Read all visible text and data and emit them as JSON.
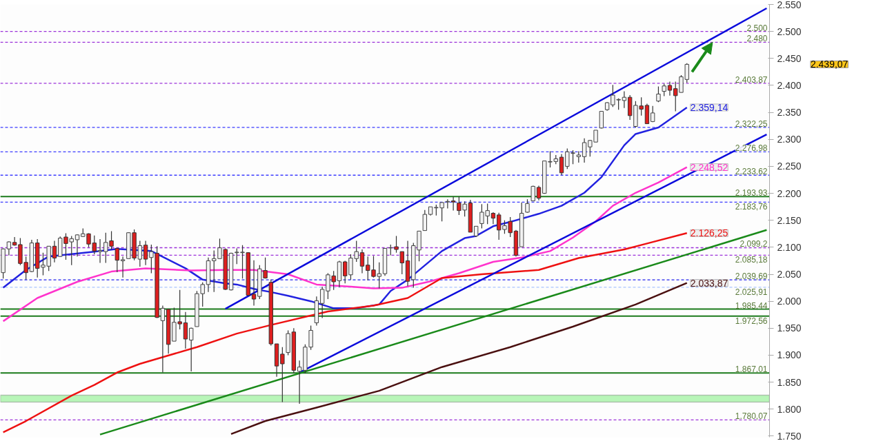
{
  "chart_data": {
    "type": "candlestick",
    "tick_labels": "y",
    "categories": [
      null,
      null,
      null,
      null,
      null,
      null,
      null,
      null,
      null,
      null,
      null,
      null,
      null,
      null,
      null,
      null,
      null,
      null,
      null,
      null,
      null,
      null,
      null,
      null,
      null,
      null,
      null,
      null,
      null,
      null,
      null,
      null,
      null,
      null,
      null,
      null,
      null,
      null,
      null,
      null,
      null,
      null,
      null,
      null,
      null,
      null,
      null,
      null,
      null,
      null,
      null,
      null,
      null,
      null,
      null,
      null,
      null,
      null,
      null,
      null,
      null,
      null,
      null,
      null,
      null,
      null,
      null,
      null,
      null,
      null,
      null,
      null,
      null,
      null,
      null,
      null,
      null,
      null,
      null,
      null,
      null,
      null,
      null,
      null,
      null,
      null,
      null,
      null,
      null,
      null,
      null,
      null,
      null,
      null,
      null,
      null,
      null,
      null,
      null,
      null,
      null,
      null,
      null,
      null,
      null,
      null,
      null,
      null,
      null,
      null,
      null,
      null,
      null,
      null,
      null,
      null,
      null,
      null,
      null,
      null,
      null,
      null,
      null,
      null,
      null,
      null,
      null,
      null,
      null,
      null,
      null,
      null,
      null,
      null,
      null
    ],
    "ohlc": [
      [
        2053,
        2098,
        2042,
        2097
      ],
      [
        2097,
        2111,
        2085,
        2110
      ],
      [
        2109,
        2119,
        2103,
        2104
      ],
      [
        2105,
        2117,
        2067,
        2070
      ],
      [
        2072,
        2083,
        2040,
        2053
      ],
      [
        2055,
        2114,
        2054,
        2108
      ],
      [
        2108,
        2115,
        2044,
        2061
      ],
      [
        2063,
        2090,
        2048,
        2067
      ],
      [
        2065,
        2102,
        2056,
        2102
      ],
      [
        2102,
        2112,
        2072,
        2080
      ],
      [
        2083,
        2120,
        2082,
        2117
      ],
      [
        2119,
        2126,
        2077,
        2107
      ],
      [
        2110,
        2121,
        2067,
        2116
      ],
      [
        2114,
        2124,
        2083,
        2123
      ],
      [
        2120,
        2135,
        2119,
        2125
      ],
      [
        2125,
        2126,
        2100,
        2106
      ],
      [
        2108,
        2122,
        2087,
        2093
      ],
      [
        2092,
        2115,
        2071,
        2094
      ],
      [
        2092,
        2127,
        2071,
        2109
      ],
      [
        2112,
        2130,
        2096,
        2102
      ],
      [
        2098,
        2099,
        2054,
        2076
      ],
      [
        2075,
        2083,
        2044,
        2077
      ],
      [
        2079,
        2128,
        2079,
        2127
      ],
      [
        2127,
        2133,
        2076,
        2080
      ],
      [
        2078,
        2112,
        2064,
        2103
      ],
      [
        2104,
        2112,
        2067,
        2078
      ],
      [
        2081,
        2105,
        2052,
        2092
      ],
      [
        2089,
        2102,
        1969,
        1970
      ],
      [
        1964,
        1992,
        1868,
        1987
      ],
      [
        1985,
        1986,
        1903,
        1920
      ],
      [
        1926,
        1988,
        1926,
        1961
      ],
      [
        1962,
        2021,
        1948,
        1958
      ],
      [
        1960,
        1980,
        1912,
        1930
      ],
      [
        1928,
        1951,
        1870,
        1950
      ],
      [
        1953,
        2019,
        1953,
        2014
      ],
      [
        2014,
        2035,
        1990,
        2031
      ],
      [
        2031,
        2081,
        2017,
        2075
      ],
      [
        2075,
        2094,
        2017,
        2079
      ],
      [
        2079,
        2116,
        2079,
        2099
      ],
      [
        2096,
        2098,
        2021,
        2022
      ],
      [
        2021,
        2090,
        2020,
        2089
      ],
      [
        2090,
        2098,
        2069,
        2091
      ],
      [
        2090,
        2104,
        2042,
        2091
      ],
      [
        2090,
        2091,
        2010,
        2011
      ],
      [
        2013,
        2076,
        1992,
        2004
      ],
      [
        2009,
        2067,
        2004,
        2060
      ],
      [
        2057,
        2081,
        2042,
        2043
      ],
      [
        2035,
        2040,
        1918,
        1921
      ],
      [
        1921,
        1921,
        1860,
        1880
      ],
      [
        1902,
        1915,
        1813,
        1884
      ],
      [
        1905,
        1946,
        1900,
        1940
      ],
      [
        1943,
        1950,
        1866,
        1872
      ],
      [
        1870,
        1890,
        1810,
        1878
      ],
      [
        1872,
        1920,
        1866,
        1915
      ],
      [
        1915,
        1955,
        1910,
        1946
      ],
      [
        1960,
        2009,
        1955,
        2001
      ],
      [
        1996,
        2027,
        1969,
        2022
      ],
      [
        2019,
        2052,
        2004,
        2049
      ],
      [
        2047,
        2056,
        2021,
        2036
      ],
      [
        2038,
        2075,
        2026,
        2073
      ],
      [
        2073,
        2075,
        2033,
        2047
      ],
      [
        2049,
        2087,
        2040,
        2080
      ],
      [
        2079,
        2112,
        2073,
        2092
      ],
      [
        2090,
        2096,
        2052,
        2065
      ],
      [
        2067,
        2083,
        2039,
        2057
      ],
      [
        2058,
        2084,
        2044,
        2046
      ],
      [
        2046,
        2072,
        2024,
        2051
      ],
      [
        2051,
        2098,
        2047,
        2098
      ],
      [
        2099,
        2105,
        2085,
        2099
      ],
      [
        2101,
        2121,
        2090,
        2096
      ],
      [
        2092,
        2092,
        2050,
        2071
      ],
      [
        2075,
        2112,
        2028,
        2037
      ],
      [
        2040,
        2108,
        2025,
        2103
      ],
      [
        2095,
        2130,
        2074,
        2130
      ],
      [
        2131,
        2169,
        2131,
        2161
      ],
      [
        2161,
        2175,
        2159,
        2175
      ],
      [
        2173,
        2179,
        2159,
        2174
      ],
      [
        2173,
        2183,
        2148,
        2183
      ],
      [
        2184,
        2189,
        2172,
        2185
      ],
      [
        2186,
        2194,
        2168,
        2184
      ],
      [
        2182,
        2194,
        2160,
        2168
      ],
      [
        2169,
        2185,
        2157,
        2180
      ],
      [
        2182,
        2188,
        2128,
        2128
      ],
      [
        2121,
        2139,
        2119,
        2139
      ],
      [
        2144,
        2180,
        2135,
        2165
      ],
      [
        2158,
        2181,
        2143,
        2168
      ],
      [
        2163,
        2165,
        2143,
        2154
      ],
      [
        2160,
        2164,
        2114,
        2132
      ],
      [
        2133,
        2150,
        2125,
        2140
      ],
      [
        2148,
        2156,
        2119,
        2127
      ],
      [
        2130,
        2132,
        2083,
        2085
      ],
      [
        2101,
        2183,
        2101,
        2163
      ],
      [
        2165,
        2189,
        2164,
        2181
      ],
      [
        2186,
        2214,
        2186,
        2213
      ],
      [
        2211,
        2214,
        2187,
        2191
      ],
      [
        2200,
        2260,
        2199,
        2260
      ],
      [
        2258,
        2278,
        2248,
        2259
      ],
      [
        2259,
        2271,
        2254,
        2264
      ],
      [
        2267,
        2273,
        2234,
        2238
      ],
      [
        2250,
        2283,
        2245,
        2277
      ],
      [
        2274,
        2280,
        2254,
        2275
      ],
      [
        2268,
        2278,
        2257,
        2271
      ],
      [
        2268,
        2302,
        2257,
        2294
      ],
      [
        2286,
        2299,
        2268,
        2298
      ],
      [
        2295,
        2317,
        2295,
        2317
      ],
      [
        2321,
        2352,
        2320,
        2352
      ],
      [
        2355,
        2369,
        2353,
        2368
      ],
      [
        2364,
        2401,
        2360,
        2382
      ],
      [
        2373,
        2376,
        2355,
        2374
      ],
      [
        2372,
        2389,
        2358,
        2378
      ],
      [
        2378,
        2382,
        2336,
        2344
      ],
      [
        2324,
        2371,
        2322,
        2363
      ],
      [
        2362,
        2378,
        2344,
        2356
      ],
      [
        2363,
        2366,
        2329,
        2329
      ],
      [
        2333,
        2362,
        2332,
        2349
      ],
      [
        2371,
        2398,
        2369,
        2384
      ],
      [
        2389,
        2403,
        2380,
        2399
      ],
      [
        2400,
        2407,
        2381,
        2391
      ],
      [
        2394,
        2407,
        2352,
        2381
      ],
      [
        2387,
        2419,
        2387,
        2416
      ],
      [
        2411,
        2441,
        2405,
        2439.07
      ],
      null,
      null,
      null,
      null,
      null,
      null,
      null,
      null,
      null,
      null,
      null,
      null,
      null,
      null
    ],
    "ylim": [
      1748,
      2550
    ],
    "yticks": [
      {
        "value": 1750,
        "label": "1.750"
      },
      {
        "value": 1800,
        "label": "1.800"
      },
      {
        "value": 1850,
        "label": "1.850"
      },
      {
        "value": 1900,
        "label": "1.900"
      },
      {
        "value": 1950,
        "label": "1.950"
      },
      {
        "value": 2000,
        "label": "2.000"
      },
      {
        "value": 2050,
        "label": "2.050"
      },
      {
        "value": 2100,
        "label": "2.100"
      },
      {
        "value": 2150,
        "label": "2.150"
      },
      {
        "value": 2200,
        "label": "2.200"
      },
      {
        "value": 2250,
        "label": "2.250"
      },
      {
        "value": 2300,
        "label": "2.300"
      },
      {
        "value": 2350,
        "label": "2.350"
      },
      {
        "value": 2400,
        "label": "2.400"
      },
      {
        "value": 2450,
        "label": "2.450"
      },
      {
        "value": 2500,
        "label": "2.500"
      },
      {
        "value": 2550,
        "label": "2.550"
      }
    ],
    "series": [
      {
        "type": "line",
        "color": "#2222e0",
        "values": [
          2025,
          null,
          null,
          null,
          2058,
          null,
          null,
          null,
          2083,
          null,
          null,
          null,
          null,
          null,
          null,
          null,
          2092,
          null,
          null,
          null,
          2097,
          null,
          null,
          null,
          null,
          null,
          2093,
          null,
          null,
          null,
          null,
          null,
          2061,
          null,
          null,
          2040,
          null,
          null,
          null,
          2033,
          null,
          2031,
          null,
          null,
          2023,
          null,
          null,
          2017,
          null,
          null,
          2010,
          null,
          null,
          null,
          2000,
          null,
          null,
          null,
          1987,
          null,
          null,
          null,
          1987,
          null,
          null,
          null,
          1994,
          null,
          2019,
          null,
          null,
          2040,
          null,
          null,
          null,
          null,
          null,
          2093,
          null,
          null,
          null,
          2117,
          null,
          2121,
          null,
          null,
          2139,
          null,
          null,
          2147,
          null,
          2153,
          null,
          null,
          2162,
          null,
          null,
          null,
          2177,
          null,
          null,
          null,
          2201,
          null,
          null,
          2230,
          null,
          null,
          null,
          2289,
          null,
          2310,
          null,
          null,
          null,
          2322,
          null,
          null,
          null,
          null,
          2359.14,
          null,
          null,
          null,
          null,
          null,
          null,
          null,
          null,
          null,
          null,
          null,
          null,
          null,
          null
        ],
        "value_labels": [
          null,
          null,
          null,
          null,
          null,
          null,
          null,
          null,
          null,
          null,
          null,
          null,
          null,
          null,
          null,
          null,
          null,
          null,
          null,
          null,
          null,
          null,
          null,
          null,
          null,
          null,
          null,
          null,
          null,
          null,
          null,
          null,
          null,
          null,
          null,
          null,
          null,
          null,
          null,
          null,
          null,
          null,
          null,
          null,
          null,
          null,
          null,
          null,
          null,
          null,
          null,
          null,
          null,
          null,
          null,
          null,
          null,
          null,
          null,
          null,
          null,
          null,
          null,
          null,
          null,
          null,
          null,
          null,
          null,
          null,
          null,
          null,
          null,
          null,
          null,
          null,
          null,
          null,
          null,
          null,
          null,
          null,
          null,
          null,
          null,
          null,
          null,
          null,
          null,
          null,
          null,
          null,
          null,
          null,
          null,
          null,
          null,
          null,
          null,
          null,
          null,
          null,
          null,
          null,
          null,
          null,
          null,
          null,
          null,
          null,
          null,
          null,
          null,
          null,
          null,
          null,
          null,
          null,
          null,
          null,
          "2.359,14",
          null,
          null,
          null,
          null,
          null,
          null,
          null,
          null,
          null,
          null,
          null,
          null,
          null,
          null
        ]
      },
      {
        "type": "line",
        "color": "#ff33cc",
        "values": [
          1963,
          null,
          null,
          null,
          null,
          null,
          2006,
          null,
          null,
          null,
          null,
          null,
          null,
          2036,
          null,
          null,
          null,
          null,
          null,
          2055,
          null,
          null,
          null,
          null,
          null,
          2061,
          null,
          null,
          null,
          null,
          null,
          null,
          null,
          2057,
          null,
          null,
          null,
          null,
          null,
          2058,
          null,
          null,
          null,
          null,
          2058,
          null,
          null,
          null,
          null,
          null,
          2050,
          null,
          null,
          null,
          null,
          2031,
          null,
          null,
          null,
          null,
          null,
          2027,
          null,
          null,
          null,
          2024,
          null,
          null,
          null,
          null,
          2025,
          null,
          null,
          null,
          null,
          2037,
          null,
          null,
          null,
          null,
          2052,
          null,
          null,
          null,
          null,
          null,
          2073,
          null,
          null,
          null,
          null,
          2081,
          null,
          null,
          null,
          null,
          2093,
          null,
          null,
          null,
          2118,
          null,
          null,
          null,
          2148,
          null,
          null,
          2177,
          null,
          null,
          null,
          2201,
          null,
          null,
          null,
          2220,
          null,
          null,
          null,
          null,
          2248.52,
          null,
          null,
          null,
          null,
          null,
          null,
          null,
          null,
          null,
          null,
          null,
          null,
          null,
          null
        ],
        "value_labels": [
          null,
          null,
          null,
          null,
          null,
          null,
          null,
          null,
          null,
          null,
          null,
          null,
          null,
          null,
          null,
          null,
          null,
          null,
          null,
          null,
          null,
          null,
          null,
          null,
          null,
          null,
          null,
          null,
          null,
          null,
          null,
          null,
          null,
          null,
          null,
          null,
          null,
          null,
          null,
          null,
          null,
          null,
          null,
          null,
          null,
          null,
          null,
          null,
          null,
          null,
          null,
          null,
          null,
          null,
          null,
          null,
          null,
          null,
          null,
          null,
          null,
          null,
          null,
          null,
          null,
          null,
          null,
          null,
          null,
          null,
          null,
          null,
          null,
          null,
          null,
          null,
          null,
          null,
          null,
          null,
          null,
          null,
          null,
          null,
          null,
          null,
          null,
          null,
          null,
          null,
          null,
          null,
          null,
          null,
          null,
          null,
          null,
          null,
          null,
          null,
          null,
          null,
          null,
          null,
          null,
          null,
          null,
          null,
          null,
          null,
          null,
          null,
          null,
          null,
          null,
          null,
          null,
          null,
          null,
          null,
          "2.248,52",
          null,
          null,
          null,
          null,
          null,
          null,
          null,
          null,
          null,
          null,
          null,
          null,
          null,
          null
        ]
      },
      {
        "type": "line",
        "color": "#ee1111",
        "values": [
          1757,
          null,
          null,
          null,
          1778,
          null,
          null,
          null,
          null,
          null,
          null,
          null,
          1825,
          null,
          null,
          null,
          1845,
          null,
          null,
          null,
          1868,
          null,
          null,
          null,
          1884,
          null,
          null,
          null,
          null,
          null,
          null,
          null,
          null,
          null,
          1915,
          null,
          null,
          null,
          null,
          null,
          null,
          1940,
          null,
          null,
          null,
          null,
          null,
          1956,
          null,
          null,
          null,
          null,
          null,
          null,
          null,
          null,
          null,
          1981,
          null,
          null,
          null,
          null,
          null,
          null,
          null,
          1992,
          null,
          null,
          null,
          null,
          null,
          2006,
          null,
          null,
          null,
          null,
          null,
          2043,
          null,
          null,
          null,
          null,
          null,
          null,
          2050,
          null,
          null,
          null,
          null,
          null,
          null,
          null,
          null,
          null,
          2058,
          null,
          null,
          null,
          null,
          null,
          null,
          2080,
          null,
          null,
          null,
          null,
          null,
          null,
          null,
          2096,
          null,
          null,
          null,
          2107,
          null,
          null,
          null,
          null,
          null,
          null,
          2126.25,
          null,
          null,
          null,
          null,
          null,
          null,
          null,
          null,
          null,
          null,
          null,
          null,
          null,
          null
        ],
        "value_labels": [
          null,
          null,
          null,
          null,
          null,
          null,
          null,
          null,
          null,
          null,
          null,
          null,
          null,
          null,
          null,
          null,
          null,
          null,
          null,
          null,
          null,
          null,
          null,
          null,
          null,
          null,
          null,
          null,
          null,
          null,
          null,
          null,
          null,
          null,
          null,
          null,
          null,
          null,
          null,
          null,
          null,
          null,
          null,
          null,
          null,
          null,
          null,
          null,
          null,
          null,
          null,
          null,
          null,
          null,
          null,
          null,
          null,
          null,
          null,
          null,
          null,
          null,
          null,
          null,
          null,
          null,
          null,
          null,
          null,
          null,
          null,
          null,
          null,
          null,
          null,
          null,
          null,
          null,
          null,
          null,
          null,
          null,
          null,
          null,
          null,
          null,
          null,
          null,
          null,
          null,
          null,
          null,
          null,
          null,
          null,
          null,
          null,
          null,
          null,
          null,
          null,
          null,
          null,
          null,
          null,
          null,
          null,
          null,
          null,
          null,
          null,
          null,
          null,
          null,
          null,
          null,
          null,
          null,
          null,
          null,
          "2.126,25",
          null,
          null,
          null,
          null,
          null,
          null,
          null,
          null,
          null,
          null,
          null,
          null,
          null,
          null
        ]
      },
      {
        "type": "line",
        "color": "#4a1010",
        "values": [
          null,
          null,
          null,
          null,
          null,
          null,
          null,
          null,
          null,
          null,
          null,
          null,
          null,
          null,
          null,
          null,
          null,
          null,
          null,
          null,
          null,
          null,
          null,
          null,
          null,
          null,
          null,
          null,
          null,
          null,
          null,
          null,
          null,
          null,
          null,
          null,
          null,
          null,
          null,
          null,
          1754,
          null,
          null,
          null,
          null,
          null,
          1778,
          null,
          null,
          null,
          null,
          null,
          null,
          null,
          null,
          1803,
          null,
          null,
          null,
          null,
          null,
          null,
          null,
          null,
          null,
          null,
          1834,
          null,
          null,
          null,
          null,
          null,
          null,
          null,
          null,
          null,
          null,
          1878,
          null,
          null,
          null,
          null,
          null,
          null,
          null,
          null,
          null,
          null,
          null,
          1915,
          null,
          null,
          null,
          null,
          null,
          null,
          null,
          null,
          null,
          null,
          1953,
          null,
          null,
          null,
          null,
          null,
          null,
          null,
          null,
          null,
          null,
          1994,
          null,
          null,
          null,
          null,
          null,
          null,
          null,
          null,
          2033.87,
          null,
          null,
          null,
          null,
          null,
          null,
          null,
          null,
          null,
          null,
          null,
          null,
          null,
          null
        ],
        "value_labels": [
          null,
          null,
          null,
          null,
          null,
          null,
          null,
          null,
          null,
          null,
          null,
          null,
          null,
          null,
          null,
          null,
          null,
          null,
          null,
          null,
          null,
          null,
          null,
          null,
          null,
          null,
          null,
          null,
          null,
          null,
          null,
          null,
          null,
          null,
          null,
          null,
          null,
          null,
          null,
          null,
          null,
          null,
          null,
          null,
          null,
          null,
          null,
          null,
          null,
          null,
          null,
          null,
          null,
          null,
          null,
          null,
          null,
          null,
          null,
          null,
          null,
          null,
          null,
          null,
          null,
          null,
          null,
          null,
          null,
          null,
          null,
          null,
          null,
          null,
          null,
          null,
          null,
          null,
          null,
          null,
          null,
          null,
          null,
          null,
          null,
          null,
          null,
          null,
          null,
          null,
          null,
          null,
          null,
          null,
          null,
          null,
          null,
          null,
          null,
          null,
          null,
          null,
          null,
          null,
          null,
          null,
          null,
          null,
          null,
          null,
          null,
          null,
          null,
          null,
          null,
          null,
          null,
          null,
          null,
          null,
          "2.033,87",
          null,
          null,
          null,
          null,
          null,
          null,
          null,
          null,
          null,
          null,
          null,
          null,
          null,
          null
        ]
      },
      {
        "type": "line",
        "color": "#0a0adc",
        "values": [
          null,
          null,
          null,
          null,
          null,
          null,
          null,
          null,
          null,
          null,
          null,
          null,
          null,
          null,
          null,
          null,
          null,
          null,
          null,
          null,
          null,
          null,
          null,
          null,
          null,
          null,
          null,
          null,
          null,
          null,
          null,
          null,
          null,
          null,
          null,
          null,
          null,
          null,
          null,
          1986,
          null,
          null,
          null,
          null,
          null,
          null,
          null,
          null,
          null,
          null,
          null,
          null,
          null,
          null,
          null,
          null,
          null,
          null,
          null,
          null,
          null,
          null,
          null,
          null,
          null,
          null,
          null,
          null,
          null,
          null,
          null,
          null,
          null,
          null,
          null,
          null,
          null,
          null,
          null,
          null,
          null,
          null,
          null,
          null,
          null,
          null,
          null,
          null,
          null,
          null,
          null,
          null,
          null,
          null,
          null,
          null,
          null,
          null,
          null,
          null,
          null,
          null,
          null,
          null,
          null,
          null,
          null,
          null,
          null,
          null,
          null,
          null,
          null,
          null,
          null,
          null,
          null,
          null,
          null,
          null,
          null,
          null,
          null,
          null,
          null,
          null,
          null,
          null,
          null,
          null,
          null,
          null,
          null,
          null,
          2543
        ]
      },
      {
        "type": "line",
        "color": "#0a0adc",
        "values": [
          null,
          null,
          null,
          null,
          null,
          null,
          null,
          null,
          null,
          null,
          null,
          null,
          null,
          null,
          null,
          null,
          null,
          null,
          null,
          null,
          null,
          null,
          null,
          null,
          null,
          null,
          null,
          null,
          null,
          null,
          null,
          null,
          null,
          null,
          null,
          null,
          null,
          null,
          null,
          null,
          null,
          null,
          null,
          null,
          null,
          null,
          null,
          null,
          null,
          null,
          null,
          null,
          1868,
          null,
          null,
          null,
          null,
          null,
          null,
          null,
          null,
          null,
          null,
          null,
          null,
          null,
          null,
          null,
          null,
          null,
          null,
          null,
          null,
          null,
          null,
          null,
          null,
          null,
          null,
          null,
          null,
          null,
          null,
          null,
          null,
          null,
          null,
          null,
          null,
          null,
          null,
          null,
          null,
          null,
          null,
          null,
          null,
          null,
          null,
          null,
          null,
          null,
          null,
          null,
          null,
          null,
          null,
          null,
          null,
          null,
          null,
          null,
          null,
          null,
          null,
          null,
          null,
          null,
          null,
          null,
          null,
          null,
          null,
          null,
          null,
          null,
          null,
          null,
          null,
          null,
          null,
          null,
          null,
          null,
          2309
        ]
      },
      {
        "type": "line",
        "color": "#1a8a1a",
        "values": [
          null,
          null,
          null,
          null,
          null,
          null,
          null,
          null,
          null,
          null,
          null,
          null,
          null,
          null,
          null,
          null,
          null,
          1753,
          null,
          null,
          null,
          null,
          null,
          null,
          null,
          null,
          null,
          null,
          null,
          null,
          null,
          null,
          null,
          null,
          null,
          null,
          null,
          null,
          null,
          null,
          null,
          null,
          null,
          null,
          null,
          null,
          null,
          null,
          null,
          null,
          null,
          null,
          null,
          null,
          null,
          null,
          null,
          null,
          null,
          null,
          null,
          null,
          null,
          null,
          null,
          null,
          null,
          null,
          null,
          null,
          null,
          null,
          null,
          null,
          null,
          null,
          null,
          null,
          null,
          null,
          null,
          null,
          null,
          null,
          null,
          null,
          null,
          null,
          null,
          null,
          null,
          null,
          null,
          null,
          null,
          null,
          null,
          null,
          null,
          null,
          null,
          null,
          null,
          null,
          null,
          null,
          null,
          null,
          null,
          null,
          null,
          null,
          null,
          null,
          null,
          null,
          null,
          null,
          null,
          null,
          null,
          null,
          null,
          null,
          null,
          null,
          null,
          null,
          null,
          null,
          null,
          null,
          null,
          null,
          2132
        ]
      }
    ],
    "ref_lines": [
      {
        "axis": "y",
        "value": 2500,
        "label": "2.500",
        "color": "#9b30d9",
        "line_style": "dashed"
      },
      {
        "axis": "y",
        "value": 2480,
        "label": "2.480",
        "color": "#9b30d9",
        "line_style": "dashed"
      },
      {
        "axis": "y",
        "value": 2403.87,
        "label": "2.403,87",
        "color": "#9b30d9",
        "line_style": "dashed"
      },
      {
        "axis": "y",
        "value": 2322.25,
        "label": "2.322,25",
        "color": "#3a3aff",
        "line_style": "dashed"
      },
      {
        "axis": "y",
        "value": 2276.98,
        "label": "2.276,98",
        "color": "#3a3aff",
        "line_style": "dashed"
      },
      {
        "axis": "y",
        "value": 2233.62,
        "label": "2.233,62",
        "color": "#3a3aff",
        "line_style": "dashed"
      },
      {
        "axis": "y",
        "value": 2193.93,
        "label": "2.193,93",
        "color": "#1a7a1a",
        "line_style": "solid"
      },
      {
        "axis": "y",
        "value": 2183.76,
        "label": "2.183,76",
        "color": "#3a3aff",
        "line_style": "dashed"
      },
      {
        "axis": "y",
        "value": 2099.2,
        "label": "2.099,2",
        "color": "#9b30d9",
        "line_style": "dashed"
      },
      {
        "axis": "y",
        "value": 2085.18,
        "label": "2.085,18",
        "color": "#9b30d9",
        "line_style": "dashed"
      },
      {
        "axis": "y",
        "value": 2039.69,
        "label": "2.039,69",
        "color": "#2020ee",
        "line_style": "dashed"
      },
      {
        "axis": "y",
        "value": 2025.91,
        "label": "2.025,91",
        "color": "#a8c4ff",
        "line_style": "dashed"
      },
      {
        "axis": "y",
        "value": 1985.44,
        "label": "1.985,44",
        "color": "#1a7a1a",
        "line_style": "solid"
      },
      {
        "axis": "y",
        "value": 1972.56,
        "label": "1.972,56",
        "color": "#1a7a1a",
        "line_style": "solid"
      },
      {
        "axis": "y",
        "value": 1867.01,
        "label": "1.867,01",
        "color": "#1a7a1a",
        "line_style": "solid"
      },
      {
        "axis": "y",
        "value": 1780.07,
        "label": "1.780,07",
        "color": "#9b30d9",
        "line_style": "dashed"
      }
    ],
    "bands": [
      {
        "axis": "y",
        "from": 1813,
        "to": 1826,
        "color": "#b8f5b8"
      }
    ],
    "annotations": [
      "2.439,07"
    ]
  }
}
